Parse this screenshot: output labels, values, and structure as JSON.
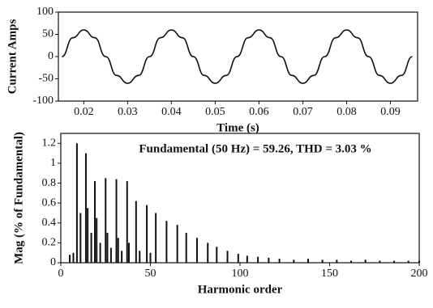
{
  "chart_data": [
    {
      "type": "line",
      "ylabel": "Current Amps",
      "xlabel": "Time (s)",
      "x": [
        0.015,
        0.0175,
        0.02,
        0.0225,
        0.025,
        0.0275,
        0.03,
        0.0325,
        0.035,
        0.0375,
        0.04,
        0.0425,
        0.045,
        0.0475,
        0.05,
        0.0525,
        0.055,
        0.0575,
        0.06,
        0.0625,
        0.065,
        0.0675,
        0.07,
        0.0725,
        0.075,
        0.0775,
        0.08,
        0.0825,
        0.085,
        0.0875,
        0.09,
        0.0925,
        0.095
      ],
      "series": [
        {
          "name": "Current",
          "color": "#111111",
          "values": [
            0,
            42.4,
            60,
            42.4,
            0,
            -42.4,
            -60,
            -42.4,
            0,
            42.4,
            60,
            42.4,
            0,
            -42.4,
            -60,
            -42.4,
            0,
            42.4,
            60,
            42.4,
            0,
            -42.4,
            -60,
            -42.4,
            0,
            42.4,
            60,
            42.4,
            0,
            -42.4,
            -60,
            -42.4,
            0
          ]
        }
      ],
      "xlim": [
        0.0142,
        0.0962
      ],
      "xticks": [
        0.02,
        0.03,
        0.04,
        0.05,
        0.06,
        0.07,
        0.08,
        0.09
      ],
      "ylim": [
        -100,
        100
      ],
      "yticks": [
        100,
        50,
        0,
        -50,
        -100
      ]
    },
    {
      "type": "bar",
      "title": "Fundamental (50 Hz) = 59.26, THD = 3.03 %",
      "ylabel": "Mag (% of Fundamental)",
      "xlabel": "Harmonic order",
      "color": "#111111",
      "x": [
        5,
        7,
        9,
        11,
        14,
        15,
        17,
        19,
        20,
        22,
        25,
        26,
        28,
        31,
        32,
        34,
        37,
        38,
        42,
        44,
        48,
        50,
        53,
        59,
        65,
        70,
        76,
        82,
        87,
        93,
        99,
        104,
        110,
        116,
        122,
        130,
        138,
        146,
        154,
        162,
        170,
        178,
        186,
        194,
        200
      ],
      "values": [
        0.08,
        0.1,
        1.2,
        0.5,
        1.1,
        0.55,
        0.3,
        0.82,
        0.45,
        0.2,
        0.85,
        0.3,
        0.15,
        0.84,
        0.25,
        0.12,
        0.82,
        0.2,
        0.62,
        0.12,
        0.58,
        0.1,
        0.5,
        0.42,
        0.38,
        0.3,
        0.25,
        0.2,
        0.16,
        0.12,
        0.09,
        0.07,
        0.06,
        0.05,
        0.04,
        0.03,
        0.04,
        0.03,
        0.03,
        0.02,
        0.03,
        0.02,
        0.02,
        0.02,
        0.02
      ],
      "xlim": [
        0,
        200
      ],
      "xticks": [
        0,
        50,
        100,
        150,
        200
      ],
      "ylim": [
        0,
        1.3
      ],
      "yticks": [
        0,
        0.2,
        0.4,
        0.6,
        0.8,
        1,
        1.2
      ]
    }
  ]
}
